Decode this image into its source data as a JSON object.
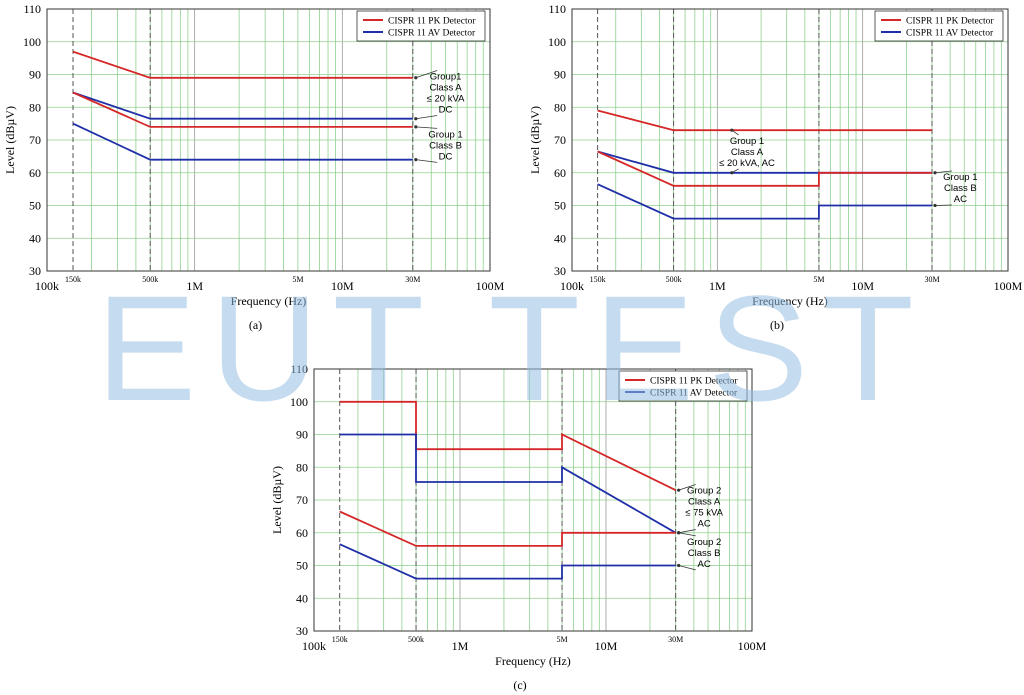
{
  "watermark": "EUT TEST",
  "colors": {
    "pk": "#d62728",
    "av": "#1f2fa8",
    "grid": "#8fd08f",
    "marker": "#555555"
  },
  "chart_data": [
    {
      "id": "a",
      "type": "line",
      "caption": "(a)",
      "xlabel": "Frequency (Hz)",
      "ylabel": "Level (dBµV)",
      "xscale": "log",
      "xlim": [
        100000,
        100000000
      ],
      "ylim": [
        30,
        110
      ],
      "yticks": [
        30,
        40,
        50,
        60,
        70,
        80,
        90,
        100,
        110
      ],
      "xticks_major": [
        {
          "v": 100000,
          "label": "100k"
        },
        {
          "v": 1000000,
          "label": "1M"
        },
        {
          "v": 10000000,
          "label": "10M"
        },
        {
          "v": 100000000,
          "label": "100M"
        }
      ],
      "markers": [
        {
          "v": 150000,
          "label": "150k"
        },
        {
          "v": 500000,
          "label": "500k"
        },
        {
          "v": 5000000,
          "label": "5M"
        },
        {
          "v": 30000000,
          "label": "30M"
        }
      ],
      "marker_lines": [
        150000,
        500000,
        30000000
      ],
      "legend": [
        {
          "key": "pk",
          "label": "CISPR 11 PK Detector"
        },
        {
          "key": "av",
          "label": "CISPR 11 AV Detector"
        }
      ],
      "series": [
        {
          "key": "pk",
          "points": [
            [
              150000,
              97
            ],
            [
              500000,
              89
            ],
            [
              30000000,
              89
            ]
          ]
        },
        {
          "key": "av",
          "points": [
            [
              150000,
              84.5
            ],
            [
              500000,
              76.5
            ],
            [
              30000000,
              76.5
            ]
          ]
        },
        {
          "key": "pk",
          "points": [
            [
              150000,
              84.5
            ],
            [
              500000,
              74
            ],
            [
              30000000,
              74
            ]
          ]
        },
        {
          "key": "av",
          "points": [
            [
              150000,
              75
            ],
            [
              500000,
              64
            ],
            [
              30000000,
              64
            ]
          ]
        }
      ],
      "annotations": [
        {
          "lines": [
            "Group1",
            "Class A",
            "≤ 20 kVA",
            "DC"
          ],
          "at": [
            50000000,
            84.5
          ],
          "targets": [
            [
              30000000,
              89
            ],
            [
              30000000,
              76.5
            ]
          ]
        },
        {
          "lines": [
            "Group 1",
            "Class B",
            "DC"
          ],
          "at": [
            50000000,
            68.5
          ],
          "targets": [
            [
              30000000,
              74
            ],
            [
              30000000,
              64
            ]
          ]
        }
      ]
    },
    {
      "id": "b",
      "type": "line",
      "caption": "(b)",
      "xlabel": "Frequency (Hz)",
      "ylabel": "Level (dBµV)",
      "xscale": "log",
      "xlim": [
        100000,
        100000000
      ],
      "ylim": [
        30,
        110
      ],
      "yticks": [
        30,
        40,
        50,
        60,
        70,
        80,
        90,
        100,
        110
      ],
      "xticks_major": [
        {
          "v": 100000,
          "label": "100k"
        },
        {
          "v": 1000000,
          "label": "1M"
        },
        {
          "v": 10000000,
          "label": "10M"
        },
        {
          "v": 100000000,
          "label": "100M"
        }
      ],
      "markers": [
        {
          "v": 150000,
          "label": "150k"
        },
        {
          "v": 500000,
          "label": "500k"
        },
        {
          "v": 5000000,
          "label": "5M"
        },
        {
          "v": 30000000,
          "label": "30M"
        }
      ],
      "marker_lines": [
        150000,
        500000,
        5000000,
        30000000
      ],
      "legend": [
        {
          "key": "pk",
          "label": "CISPR 11 PK Detector"
        },
        {
          "key": "av",
          "label": "CISPR 11 AV Detector"
        }
      ],
      "series": [
        {
          "key": "pk",
          "points": [
            [
              150000,
              79
            ],
            [
              500000,
              73
            ],
            [
              30000000,
              73
            ]
          ]
        },
        {
          "key": "av",
          "points": [
            [
              150000,
              66.5
            ],
            [
              500000,
              60
            ],
            [
              30000000,
              60
            ]
          ]
        },
        {
          "key": "pk",
          "points": [
            [
              150000,
              66.5
            ],
            [
              500000,
              56
            ],
            [
              5000000,
              56
            ],
            [
              5000000,
              60
            ],
            [
              30000000,
              60
            ]
          ]
        },
        {
          "key": "av",
          "points": [
            [
              150000,
              56.5
            ],
            [
              500000,
              46
            ],
            [
              5000000,
              46
            ],
            [
              5000000,
              50
            ],
            [
              30000000,
              50
            ]
          ]
        }
      ],
      "annotations": [
        {
          "lines": [
            "Group 1",
            "Class A",
            "≤ 20 kVA, AC"
          ],
          "at": [
            1600000,
            66.5
          ],
          "targets": [
            [
              1200000,
              73
            ],
            [
              1200000,
              60
            ]
          ]
        },
        {
          "lines": [
            "Group 1",
            "Class B",
            "AC"
          ],
          "at": [
            47000000,
            55.5
          ],
          "targets": [
            [
              30000000,
              60
            ],
            [
              30000000,
              50
            ]
          ]
        }
      ]
    },
    {
      "id": "c",
      "type": "line",
      "caption": "(c)",
      "xlabel": "Frequency (Hz)",
      "ylabel": "Level (dBµV)",
      "xscale": "log",
      "xlim": [
        100000,
        100000000
      ],
      "ylim": [
        30,
        110
      ],
      "yticks": [
        30,
        40,
        50,
        60,
        70,
        80,
        90,
        100,
        110
      ],
      "xticks_major": [
        {
          "v": 100000,
          "label": "100k"
        },
        {
          "v": 1000000,
          "label": "1M"
        },
        {
          "v": 10000000,
          "label": "10M"
        },
        {
          "v": 100000000,
          "label": "100M"
        }
      ],
      "markers": [
        {
          "v": 150000,
          "label": "150k"
        },
        {
          "v": 500000,
          "label": "500k"
        },
        {
          "v": 5000000,
          "label": "5M"
        },
        {
          "v": 30000000,
          "label": "30M"
        }
      ],
      "marker_lines": [
        150000,
        500000,
        5000000,
        30000000
      ],
      "legend": [
        {
          "key": "pk",
          "label": "CISPR 11 PK Detector"
        },
        {
          "key": "av",
          "label": "CISPR 11 AV Detector"
        }
      ],
      "series": [
        {
          "key": "pk",
          "points": [
            [
              150000,
              100
            ],
            [
              500000,
              100
            ],
            [
              500000,
              85.5
            ],
            [
              5000000,
              85.5
            ],
            [
              5000000,
              90
            ],
            [
              30000000,
              73
            ]
          ]
        },
        {
          "key": "av",
          "points": [
            [
              150000,
              90
            ],
            [
              500000,
              90
            ],
            [
              500000,
              75.5
            ],
            [
              5000000,
              75.5
            ],
            [
              5000000,
              80
            ],
            [
              30000000,
              60
            ]
          ]
        },
        {
          "key": "pk",
          "points": [
            [
              150000,
              66.5
            ],
            [
              500000,
              56
            ],
            [
              5000000,
              56
            ],
            [
              5000000,
              60
            ],
            [
              30000000,
              60
            ]
          ]
        },
        {
          "key": "av",
          "points": [
            [
              150000,
              56.5
            ],
            [
              500000,
              46
            ],
            [
              5000000,
              46
            ],
            [
              5000000,
              50
            ],
            [
              30000000,
              50
            ]
          ]
        }
      ],
      "annotations": [
        {
          "lines": [
            "Group 2",
            "Class A",
            "≤ 75 kVA",
            "AC"
          ],
          "at": [
            47000000,
            68
          ],
          "targets": [
            [
              30000000,
              73
            ],
            [
              30000000,
              60
            ]
          ]
        },
        {
          "lines": [
            "Group 2",
            "Class B",
            "AC"
          ],
          "at": [
            47000000,
            54
          ],
          "targets": [
            [
              30000000,
              60
            ],
            [
              30000000,
              50
            ]
          ]
        }
      ]
    }
  ]
}
